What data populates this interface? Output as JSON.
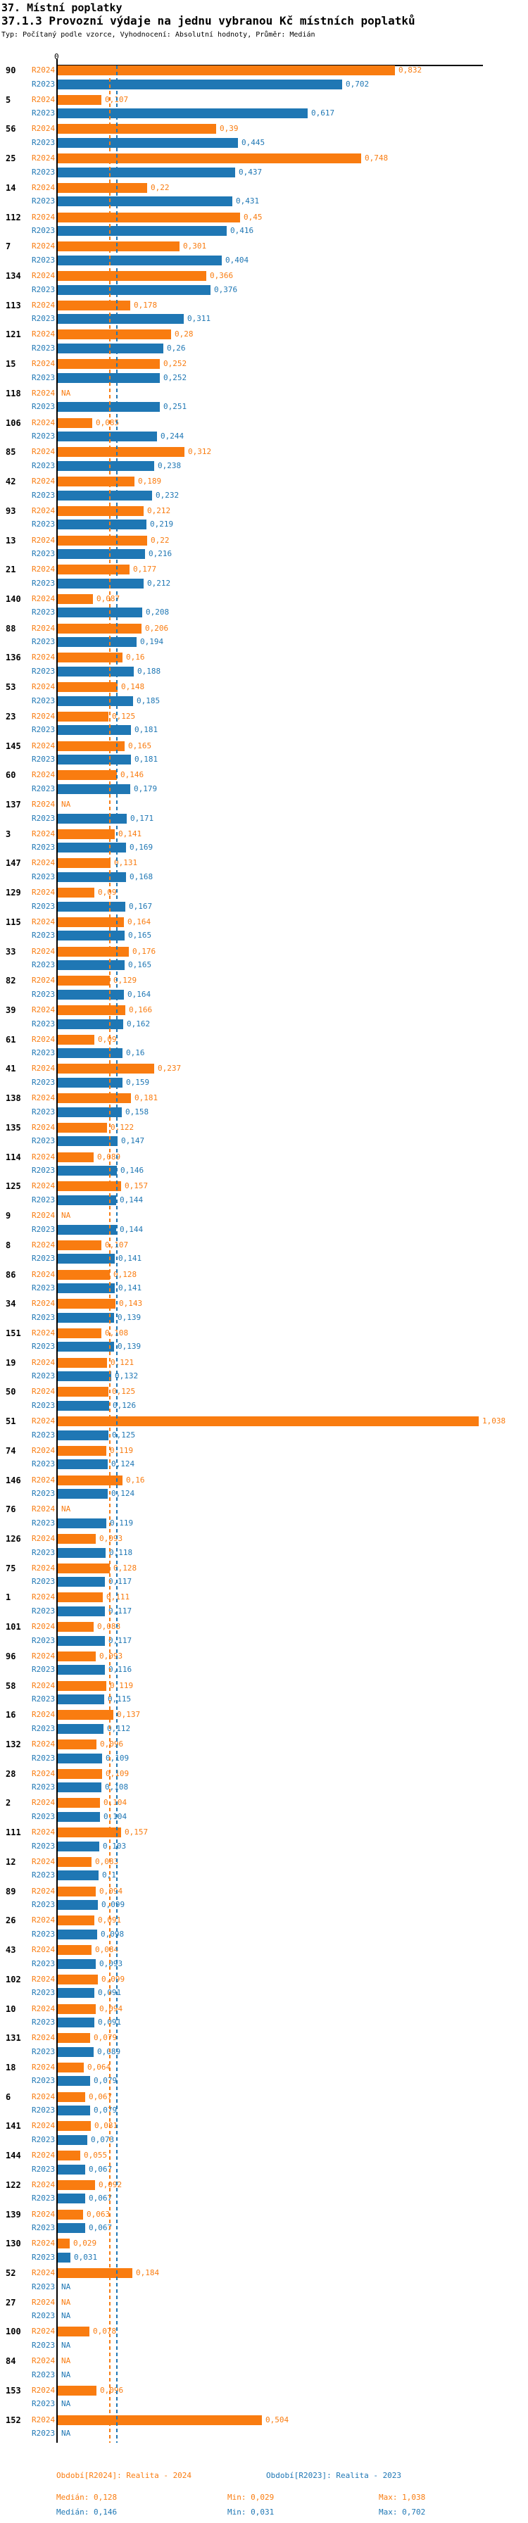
{
  "header": {
    "title": "37. Místní poplatky",
    "subtitle": "37.1.3 Provozní výdaje na jednu vybranou Kč místních poplatků",
    "meta": "Typ: Počítaný podle vzorce, Vyhodnocení: Absolutní hodnoty, Průměr: Medián"
  },
  "chart_data": {
    "type": "bar",
    "orientation": "horizontal",
    "title": "37.1.3 Provozní výdaje na jednu vybranou Kč místních poplatků",
    "series_names": [
      "R2024",
      "R2023"
    ],
    "colors": {
      "R2024": "#f97c10",
      "R2023": "#1f77b4"
    },
    "axis": {
      "zero_label": "0",
      "xlim": [
        0,
        1.05
      ],
      "grid": false
    },
    "median_lines": {
      "R2024": 0.128,
      "R2023": 0.146
    },
    "na_text": "NA",
    "groups": [
      {
        "id": "90",
        "R2024": "0,832",
        "R2023": "0,702"
      },
      {
        "id": "5",
        "R2024": "0,107",
        "R2023": "0,617"
      },
      {
        "id": "56",
        "R2024": "0,39",
        "R2023": "0,445"
      },
      {
        "id": "25",
        "R2024": "0,748",
        "R2023": "0,437"
      },
      {
        "id": "14",
        "R2024": "0,22",
        "R2023": "0,431"
      },
      {
        "id": "112",
        "R2024": "0,45",
        "R2023": "0,416"
      },
      {
        "id": "7",
        "R2024": "0,301",
        "R2023": "0,404"
      },
      {
        "id": "134",
        "R2024": "0,366",
        "R2023": "0,376"
      },
      {
        "id": "113",
        "R2024": "0,178",
        "R2023": "0,311"
      },
      {
        "id": "121",
        "R2024": "0,28",
        "R2023": "0,26"
      },
      {
        "id": "15",
        "R2024": "0,252",
        "R2023": "0,252"
      },
      {
        "id": "118",
        "R2024": "NA",
        "R2023": "0,251"
      },
      {
        "id": "106",
        "R2024": "0,085",
        "R2023": "0,244"
      },
      {
        "id": "85",
        "R2024": "0,312",
        "R2023": "0,238"
      },
      {
        "id": "42",
        "R2024": "0,189",
        "R2023": "0,232"
      },
      {
        "id": "93",
        "R2024": "0,212",
        "R2023": "0,219"
      },
      {
        "id": "13",
        "R2024": "0,22",
        "R2023": "0,216"
      },
      {
        "id": "21",
        "R2024": "0,177",
        "R2023": "0,212"
      },
      {
        "id": "140",
        "R2024": "0,087",
        "R2023": "0,208"
      },
      {
        "id": "88",
        "R2024": "0,206",
        "R2023": "0,194"
      },
      {
        "id": "136",
        "R2024": "0,16",
        "R2023": "0,188"
      },
      {
        "id": "53",
        "R2024": "0,148",
        "R2023": "0,185"
      },
      {
        "id": "23",
        "R2024": "0,125",
        "R2023": "0,181"
      },
      {
        "id": "145",
        "R2024": "0,165",
        "R2023": "0,181"
      },
      {
        "id": "60",
        "R2024": "0,146",
        "R2023": "0,179"
      },
      {
        "id": "137",
        "R2024": "NA",
        "R2023": "0,171"
      },
      {
        "id": "3",
        "R2024": "0,141",
        "R2023": "0,169"
      },
      {
        "id": "147",
        "R2024": "0,131",
        "R2023": "0,168"
      },
      {
        "id": "129",
        "R2024": "0,09",
        "R2023": "0,167"
      },
      {
        "id": "115",
        "R2024": "0,164",
        "R2023": "0,165"
      },
      {
        "id": "33",
        "R2024": "0,176",
        "R2023": "0,165"
      },
      {
        "id": "82",
        "R2024": "0,129",
        "R2023": "0,164"
      },
      {
        "id": "39",
        "R2024": "0,166",
        "R2023": "0,162"
      },
      {
        "id": "61",
        "R2024": "0,09",
        "R2023": "0,16"
      },
      {
        "id": "41",
        "R2024": "0,237",
        "R2023": "0,159"
      },
      {
        "id": "138",
        "R2024": "0,181",
        "R2023": "0,158"
      },
      {
        "id": "135",
        "R2024": "0,122",
        "R2023": "0,147"
      },
      {
        "id": "114",
        "R2024": "0,089",
        "R2023": "0,146"
      },
      {
        "id": "125",
        "R2024": "0,157",
        "R2023": "0,144"
      },
      {
        "id": "9",
        "R2024": "NA",
        "R2023": "0,144"
      },
      {
        "id": "8",
        "R2024": "0,107",
        "R2023": "0,141"
      },
      {
        "id": "86",
        "R2024": "0,128",
        "R2023": "0,141"
      },
      {
        "id": "34",
        "R2024": "0,143",
        "R2023": "0,139"
      },
      {
        "id": "151",
        "R2024": "0,108",
        "R2023": "0,139"
      },
      {
        "id": "19",
        "R2024": "0,121",
        "R2023": "0,132"
      },
      {
        "id": "50",
        "R2024": "0,125",
        "R2023": "0,126"
      },
      {
        "id": "51",
        "R2024": "1,038",
        "R2023": "0,125"
      },
      {
        "id": "74",
        "R2024": "0,119",
        "R2023": "0,124"
      },
      {
        "id": "146",
        "R2024": "0,16",
        "R2023": "0,124"
      },
      {
        "id": "76",
        "R2024": "NA",
        "R2023": "0,119"
      },
      {
        "id": "126",
        "R2024": "0,093",
        "R2023": "0,118"
      },
      {
        "id": "75",
        "R2024": "0,128",
        "R2023": "0,117"
      },
      {
        "id": "1",
        "R2024": "0,111",
        "R2023": "0,117"
      },
      {
        "id": "101",
        "R2024": "0,088",
        "R2023": "0,117"
      },
      {
        "id": "96",
        "R2024": "0,093",
        "R2023": "0,116"
      },
      {
        "id": "58",
        "R2024": "0,119",
        "R2023": "0,115"
      },
      {
        "id": "16",
        "R2024": "0,137",
        "R2023": "0,112"
      },
      {
        "id": "132",
        "R2024": "0,096",
        "R2023": "0,109"
      },
      {
        "id": "28",
        "R2024": "0,109",
        "R2023": "0,108"
      },
      {
        "id": "2",
        "R2024": "0,104",
        "R2023": "0,104"
      },
      {
        "id": "111",
        "R2024": "0,157",
        "R2023": "0,103"
      },
      {
        "id": "12",
        "R2024": "0,083",
        "R2023": "0,1"
      },
      {
        "id": "89",
        "R2024": "0,094",
        "R2023": "0,099"
      },
      {
        "id": "26",
        "R2024": "0,091",
        "R2023": "0,098"
      },
      {
        "id": "43",
        "R2024": "0,084",
        "R2023": "0,093"
      },
      {
        "id": "102",
        "R2024": "0,099",
        "R2023": "0,091"
      },
      {
        "id": "10",
        "R2024": "0,094",
        "R2023": "0,091"
      },
      {
        "id": "131",
        "R2024": "0,079",
        "R2023": "0,089"
      },
      {
        "id": "18",
        "R2024": "0,064",
        "R2023": "0,079"
      },
      {
        "id": "6",
        "R2024": "0,067",
        "R2023": "0,079"
      },
      {
        "id": "141",
        "R2024": "0,081",
        "R2023": "0,073"
      },
      {
        "id": "144",
        "R2024": "0,055",
        "R2023": "0,067"
      },
      {
        "id": "122",
        "R2024": "0,092",
        "R2023": "0,067"
      },
      {
        "id": "139",
        "R2024": "0,063",
        "R2023": "0,067"
      },
      {
        "id": "130",
        "R2024": "0,029",
        "R2023": "0,031"
      },
      {
        "id": "52",
        "R2024": "0,184",
        "R2023": "NA"
      },
      {
        "id": "27",
        "R2024": "NA",
        "R2023": "NA"
      },
      {
        "id": "100",
        "R2024": "0,078",
        "R2023": "NA"
      },
      {
        "id": "84",
        "R2024": "NA",
        "R2023": "NA"
      },
      {
        "id": "153",
        "R2024": "0,096",
        "R2023": "NA"
      },
      {
        "id": "152",
        "R2024": "0,504",
        "R2023": "NA"
      }
    ]
  },
  "footer": {
    "legend_2024": "Období[R2024]: Realita - 2024",
    "legend_2023": "Období[R2023]: Realita - 2023",
    "stats_2024": {
      "median": "Medián: 0,128",
      "min": "Min: 0,029",
      "max": "Max: 1,038"
    },
    "stats_2023": {
      "median": "Medián: 0,146",
      "min": "Min: 0,031",
      "max": "Max: 0,702"
    }
  }
}
